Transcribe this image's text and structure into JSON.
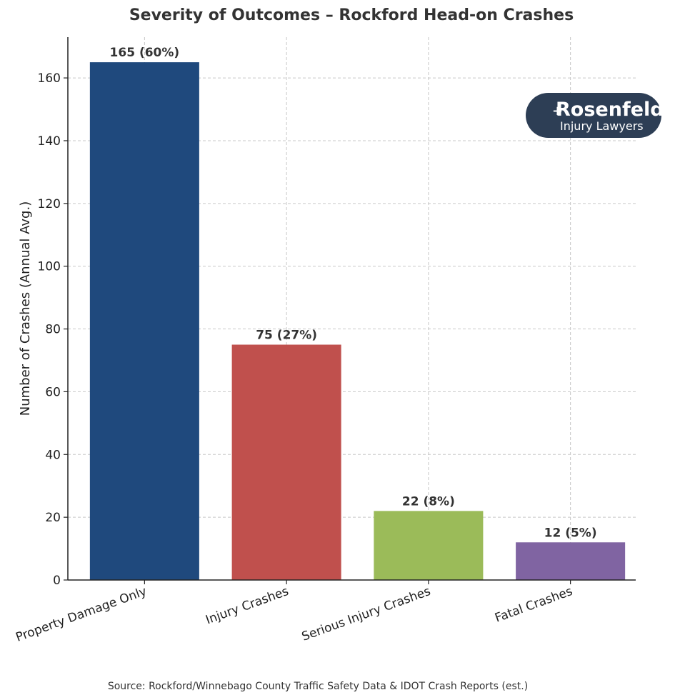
{
  "chart_data": {
    "type": "bar",
    "title": "Severity of Outcomes – Rockford Head-on Crashes",
    "xlabel": "",
    "ylabel": "Number of Crashes (Annual Avg.)",
    "categories": [
      "Property Damage Only",
      "Injury Crashes",
      "Serious Injury Crashes",
      "Fatal Crashes"
    ],
    "values": [
      165,
      75,
      22,
      12
    ],
    "data_labels": [
      "165 (60%)",
      "75 (27%)",
      "22 (8%)",
      "12 (5%)"
    ],
    "colors": [
      "#1f497d",
      "#c0504d",
      "#9bbb59",
      "#8064a2"
    ],
    "ylim": [
      0,
      173
    ],
    "yticks": [
      0,
      20,
      40,
      60,
      80,
      100,
      120,
      140,
      160
    ],
    "grid": true,
    "legend": "none"
  },
  "logo": {
    "name": "Rosenfeld",
    "tagline": "Injury Lawyers",
    "background": "#2d3e55"
  },
  "source": "Source: Rockford/Winnebago County Traffic Safety Data & IDOT Crash Reports (est.)"
}
